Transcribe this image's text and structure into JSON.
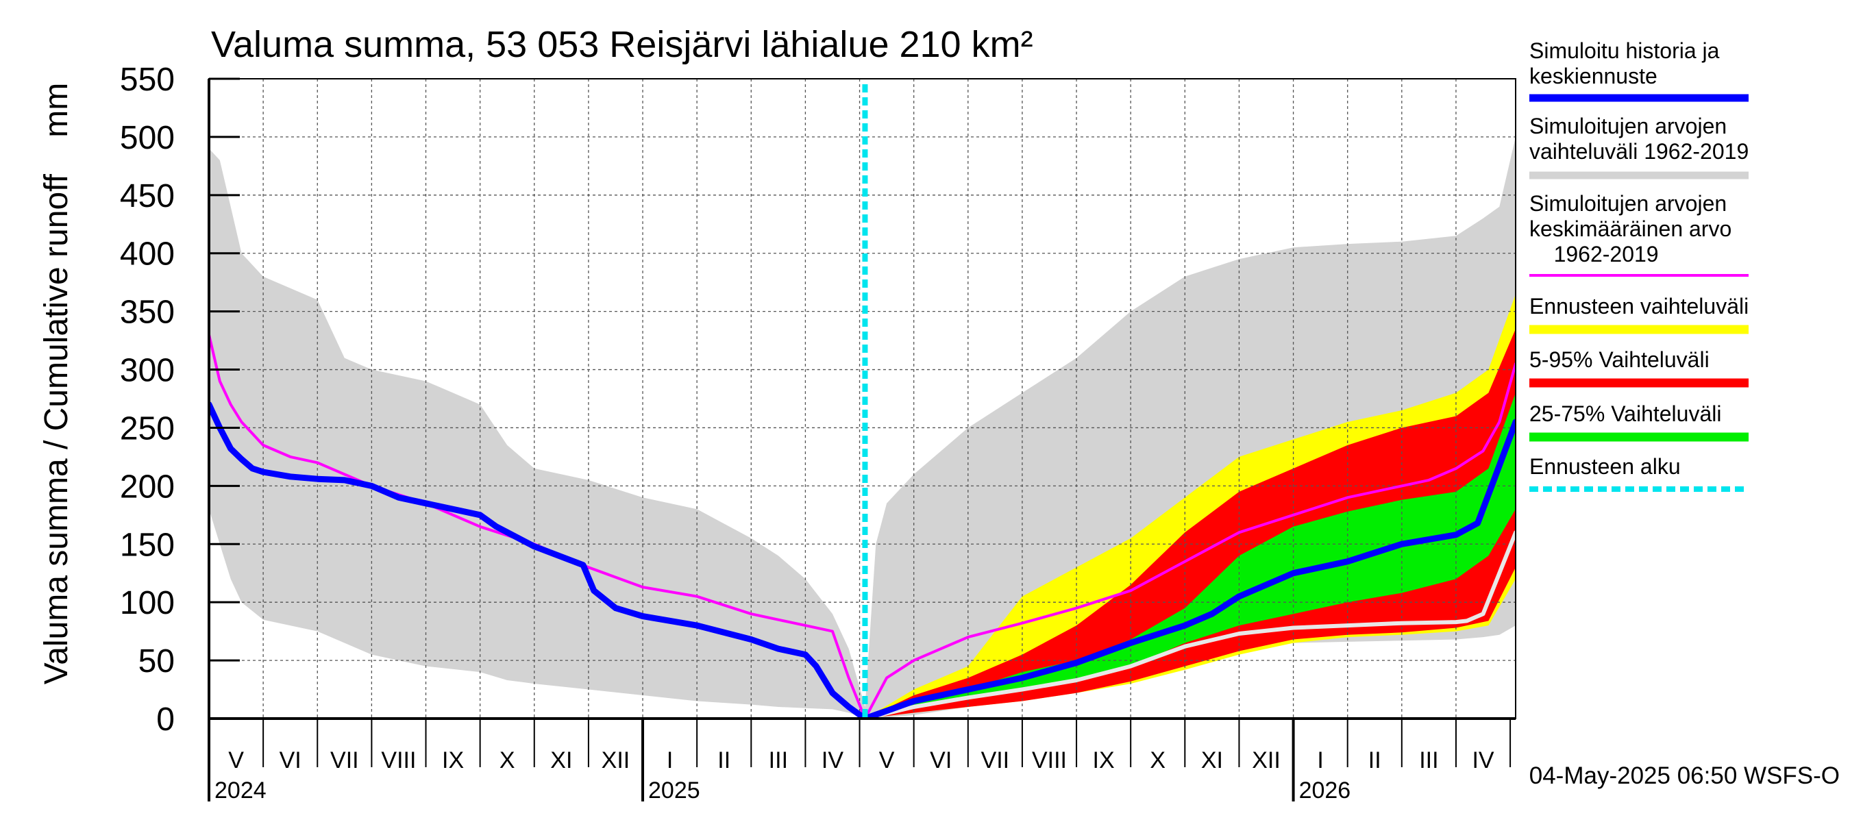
{
  "chart_data": {
    "type": "area",
    "title": "Valuma summa, 53 053 Reisjärvi lähialue 210 km²",
    "ylabel": "Valuma summa / Cumulative runoff    mm",
    "ylim": [
      0,
      550
    ],
    "yticks": [
      0,
      50,
      100,
      150,
      200,
      250,
      300,
      350,
      400,
      450,
      500,
      550
    ],
    "x_unit": "month index (0 = 1 May 2024)",
    "xlim": [
      0,
      24.1
    ],
    "forecast_start_x": 12.1,
    "month_labels": [
      {
        "x": 0.5,
        "label": "V"
      },
      {
        "x": 1.5,
        "label": "VI"
      },
      {
        "x": 2.5,
        "label": "VII"
      },
      {
        "x": 3.5,
        "label": "VIII"
      },
      {
        "x": 4.5,
        "label": "IX"
      },
      {
        "x": 5.5,
        "label": "X"
      },
      {
        "x": 6.5,
        "label": "XI"
      },
      {
        "x": 7.5,
        "label": "XII"
      },
      {
        "x": 8.5,
        "label": "I"
      },
      {
        "x": 9.5,
        "label": "II"
      },
      {
        "x": 10.5,
        "label": "III"
      },
      {
        "x": 11.5,
        "label": "IV"
      },
      {
        "x": 12.5,
        "label": "V"
      },
      {
        "x": 13.5,
        "label": "VI"
      },
      {
        "x": 14.5,
        "label": "VII"
      },
      {
        "x": 15.5,
        "label": "VIII"
      },
      {
        "x": 16.5,
        "label": "IX"
      },
      {
        "x": 17.5,
        "label": "X"
      },
      {
        "x": 18.5,
        "label": "XI"
      },
      {
        "x": 19.5,
        "label": "XII"
      },
      {
        "x": 20.5,
        "label": "I"
      },
      {
        "x": 21.5,
        "label": "II"
      },
      {
        "x": 22.5,
        "label": "III"
      },
      {
        "x": 23.5,
        "label": "IV"
      }
    ],
    "year_labels": [
      {
        "x": 0,
        "label": "2024"
      },
      {
        "x": 8,
        "label": "2025"
      },
      {
        "x": 20,
        "label": "2026"
      }
    ],
    "footer": "04-May-2025 06:50 WSFS-O",
    "legend": [
      {
        "label": "Simuloitu historia ja\nkeskiennuste",
        "color": "#0000ff"
      },
      {
        "label": "Simuloitujen arvojen\nvaihteluväli 1962-2019",
        "color": "#d3d3d3"
      },
      {
        "label": "Simuloitujen arvojen\nkeskimääräinen arvo\n    1962-2019",
        "color": "#ff00ff"
      },
      {
        "label": "Ennusteen vaihteluväli",
        "color": "#ffff00"
      },
      {
        "label": "5-95% Vaihteluväli",
        "color": "#ff0000"
      },
      {
        "label": "25-75% Vaihteluväli",
        "color": "#00ee00"
      },
      {
        "label": "Ennusteen alku",
        "color": "#00e5ee"
      }
    ],
    "series": {
      "hist_range": {
        "name": "Simuloitujen arvojen vaihteluväli 1962-2019",
        "color": "#d3d3d3",
        "x": [
          0,
          0.2,
          0.4,
          0.6,
          1,
          2,
          2.5,
          3,
          4,
          5,
          5.5,
          6,
          7,
          8,
          9,
          10,
          10.5,
          11,
          11.5,
          11.8,
          12.1,
          12.3,
          12.5,
          13,
          14,
          15,
          16,
          17,
          18,
          19,
          20,
          21,
          22,
          23,
          23.5,
          23.8,
          24.1
        ],
        "upper": [
          490,
          480,
          440,
          400,
          380,
          360,
          310,
          300,
          290,
          270,
          235,
          215,
          205,
          190,
          180,
          155,
          140,
          120,
          90,
          60,
          10,
          150,
          185,
          210,
          250,
          280,
          310,
          350,
          380,
          395,
          405,
          408,
          410,
          415,
          430,
          440,
          500
        ],
        "lower": [
          180,
          150,
          120,
          100,
          85,
          75,
          65,
          55,
          45,
          40,
          33,
          30,
          25,
          20,
          15,
          12,
          10,
          9,
          8,
          5,
          0,
          0,
          1,
          3,
          10,
          20,
          32,
          45,
          58,
          63,
          65,
          66,
          67,
          68,
          70,
          72,
          80
        ]
      },
      "ennuste_range": {
        "name": "Ennusteen vaihteluväli",
        "color": "#ffff00",
        "x": [
          12.1,
          13,
          14,
          15,
          16,
          17,
          18,
          19,
          20,
          21,
          22,
          23,
          23.6,
          24.1
        ],
        "upper": [
          0,
          25,
          45,
          105,
          130,
          155,
          190,
          225,
          240,
          255,
          265,
          280,
          300,
          365
        ],
        "lower": [
          0,
          5,
          10,
          15,
          22,
          30,
          42,
          55,
          65,
          70,
          72,
          75,
          80,
          120
        ]
      },
      "p5_95": {
        "name": "5-95% Vaihteluväli",
        "color": "#ff0000",
        "x": [
          12.1,
          13,
          14,
          15,
          16,
          17,
          18,
          19,
          20,
          21,
          22,
          23,
          23.6,
          24.1
        ],
        "upper": [
          0,
          20,
          35,
          55,
          80,
          115,
          160,
          195,
          215,
          235,
          250,
          260,
          280,
          335
        ],
        "lower": [
          0,
          5,
          10,
          15,
          22,
          32,
          45,
          58,
          68,
          72,
          74,
          78,
          84,
          130
        ]
      },
      "p25_75": {
        "name": "25-75% Vaihteluväli",
        "color": "#00ee00",
        "x": [
          12.1,
          13,
          14,
          15,
          16,
          17,
          18,
          19,
          20,
          21,
          22,
          23,
          23.6,
          24.1
        ],
        "upper": [
          0,
          15,
          25,
          40,
          50,
          68,
          95,
          140,
          165,
          178,
          188,
          195,
          215,
          280
        ],
        "lower": [
          0,
          10,
          18,
          25,
          32,
          45,
          65,
          80,
          90,
          100,
          108,
          120,
          140,
          180
        ]
      },
      "mean": {
        "name": "Simuloitujen arvojen keskimääräinen arvo 1962-2019",
        "color": "#ff00ff",
        "x": [
          0,
          0.2,
          0.4,
          0.6,
          0.8,
          1,
          1.5,
          2,
          2.5,
          3,
          4,
          5,
          6,
          7,
          8,
          9,
          10,
          10.5,
          11,
          11.5,
          11.8,
          12.1,
          12.5,
          13,
          14,
          15,
          16,
          17,
          18,
          19,
          20,
          21,
          22,
          22.5,
          23,
          23.5,
          23.8,
          24.1
        ],
        "values": [
          330,
          290,
          270,
          255,
          245,
          235,
          225,
          220,
          210,
          200,
          185,
          165,
          150,
          130,
          113,
          105,
          90,
          85,
          80,
          75,
          35,
          0,
          35,
          50,
          70,
          82,
          95,
          110,
          135,
          160,
          175,
          190,
          200,
          205,
          215,
          230,
          255,
          305
        ]
      },
      "median_forecast": {
        "name": "Mediaani",
        "color": "#e8e8e8",
        "x": [
          12.1,
          13,
          14,
          15,
          16,
          17,
          18,
          19,
          20,
          21,
          22,
          23,
          23.2,
          23.5,
          23.8,
          24.1
        ],
        "values": [
          0,
          10,
          18,
          25,
          33,
          45,
          62,
          73,
          78,
          80,
          82,
          83,
          84,
          90,
          125,
          160
        ]
      },
      "sim_history": {
        "name": "Simuloitu historia ja keskiennuste",
        "color": "#0000ff",
        "x": [
          0,
          0.2,
          0.4,
          0.6,
          0.8,
          1,
          1.5,
          2,
          2.5,
          3,
          3.5,
          4,
          5,
          5.3,
          6,
          6.9,
          7.1,
          7.5,
          8,
          9,
          10,
          10.5,
          11,
          11.2,
          11.5,
          11.8,
          12.1,
          13,
          14,
          15,
          16,
          17,
          18,
          18.5,
          19,
          20,
          21,
          22,
          23,
          23.4,
          23.7,
          24.1
        ],
        "values": [
          270,
          250,
          232,
          223,
          215,
          212,
          208,
          206,
          205,
          200,
          190,
          185,
          175,
          165,
          148,
          132,
          110,
          95,
          88,
          80,
          68,
          60,
          55,
          45,
          22,
          10,
          0,
          15,
          25,
          35,
          48,
          65,
          80,
          90,
          105,
          125,
          135,
          150,
          158,
          168,
          205,
          255
        ]
      }
    }
  }
}
